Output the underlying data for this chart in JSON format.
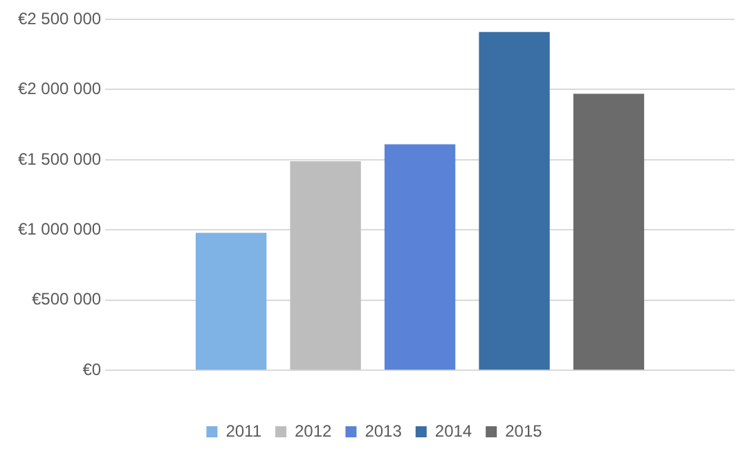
{
  "chart_data": {
    "type": "bar",
    "categories": [
      null
    ],
    "series": [
      {
        "name": "2011",
        "color": "#7fb2e5",
        "values": [
          980000
        ]
      },
      {
        "name": "2012",
        "color": "#bdbdbd",
        "values": [
          1490000
        ]
      },
      {
        "name": "2013",
        "color": "#5a82d6",
        "values": [
          1610000
        ]
      },
      {
        "name": "2014",
        "color": "#3a6fa5",
        "values": [
          2410000
        ]
      },
      {
        "name": "2015",
        "color": "#6b6b6b",
        "values": [
          1970000
        ]
      }
    ],
    "ylim": [
      0,
      2500000
    ],
    "yticks": [
      {
        "value": 0,
        "label": "€0"
      },
      {
        "value": 500000,
        "label": "€500 000"
      },
      {
        "value": 1000000,
        "label": "€1 000 000"
      },
      {
        "value": 1500000,
        "label": "€1 500 000"
      },
      {
        "value": 2000000,
        "label": "€2 000 000"
      },
      {
        "value": 2500000,
        "label": "€2 500 000"
      }
    ],
    "grid": "y",
    "legend": "bottom"
  }
}
